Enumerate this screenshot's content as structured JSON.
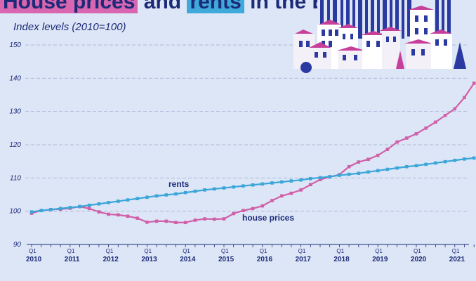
{
  "header": {
    "title_part1": "House prices",
    "title_part2": " and ",
    "title_part3": "rents",
    "title_part4": " in the EU",
    "subtitle": "Index levels (2010=100)"
  },
  "colors": {
    "background": "#dde6f6",
    "house_prices": "#d05fa8",
    "rents": "#3aa6d9",
    "text": "#1c2a78",
    "grid": "#aeb9d8"
  },
  "illustration": {
    "icon": "houses-illustration-icon"
  },
  "chart_data": {
    "type": "line",
    "title": "",
    "ylabel": "",
    "xlabel": "",
    "ylim": [
      90,
      150
    ],
    "yticks": [
      90,
      100,
      110,
      120,
      130,
      140,
      150
    ],
    "grid": true,
    "legend": "inline labels",
    "x_start": "2010Q1",
    "x_ticks": [
      {
        "label": "2010",
        "q": "Q1"
      },
      {
        "label": "2011",
        "q": "Q1"
      },
      {
        "label": "2012",
        "q": "Q1"
      },
      {
        "label": "2013",
        "q": "Q1"
      },
      {
        "label": "2014",
        "q": "Q1"
      },
      {
        "label": "2015",
        "q": "Q1"
      },
      {
        "label": "2016",
        "q": "Q1"
      },
      {
        "label": "2017",
        "q": "Q1"
      },
      {
        "label": "2018",
        "q": "Q1"
      },
      {
        "label": "2019",
        "q": "Q1"
      },
      {
        "label": "2020",
        "q": "Q1"
      },
      {
        "label": "2021",
        "q": "Q1"
      }
    ],
    "series": [
      {
        "name": "house prices",
        "values": [
          99.4,
          100.2,
          100.5,
          100.6,
          100.9,
          101.4,
          100.8,
          99.8,
          99.1,
          98.9,
          98.5,
          97.9,
          96.7,
          97.0,
          97.0,
          96.6,
          96.6,
          97.3,
          97.7,
          97.6,
          97.7,
          99.3,
          100.2,
          100.8,
          101.6,
          103.2,
          104.6,
          105.4,
          106.4,
          108.0,
          109.5,
          110.3,
          111.0,
          113.4,
          114.8,
          115.6,
          116.8,
          118.6,
          120.8,
          122.0,
          123.3,
          125.0,
          126.8,
          128.8,
          130.8,
          134.2,
          138.5
        ]
      },
      {
        "name": "rents",
        "values": [
          99.8,
          100.2,
          100.5,
          100.8,
          101.1,
          101.4,
          101.8,
          102.2,
          102.6,
          103.0,
          103.4,
          103.8,
          104.2,
          104.6,
          104.9,
          105.2,
          105.6,
          106.0,
          106.4,
          106.7,
          107.0,
          107.3,
          107.6,
          107.9,
          108.2,
          108.5,
          108.8,
          109.1,
          109.4,
          109.8,
          110.1,
          110.4,
          110.8,
          111.1,
          111.4,
          111.8,
          112.2,
          112.6,
          113.0,
          113.4,
          113.7,
          114.1,
          114.5,
          114.9,
          115.3,
          115.7,
          116.0
        ]
      }
    ]
  }
}
